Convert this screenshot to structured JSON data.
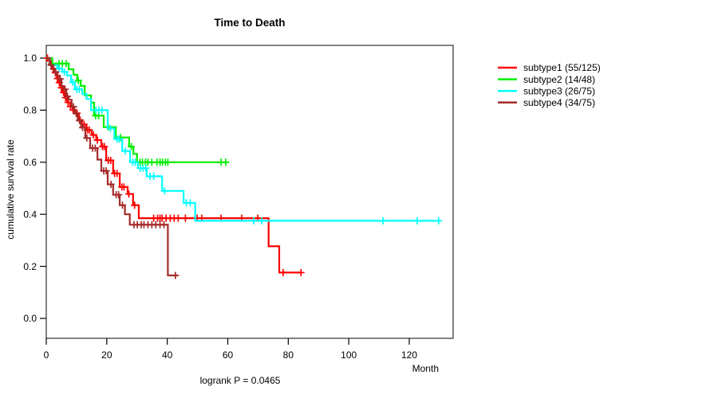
{
  "chart_data": {
    "type": "line",
    "variant": "kaplan_meier_step",
    "title": "Time to Death",
    "xlabel": "Month",
    "ylabel": "cumulative survival rate",
    "annotation": "logrank P = 0.0465",
    "xlim": [
      0,
      134.5
    ],
    "ylim": [
      0,
      1.0
    ],
    "grid": false,
    "legend_position": "right-outside",
    "censor_mark": "plus",
    "x_ticks": [
      0,
      20,
      40,
      60,
      80,
      100,
      120
    ],
    "x_tick_labels": [
      "0",
      "20",
      "40",
      "60",
      "80",
      "100",
      "120"
    ],
    "y_ticks": [
      1.0,
      0.8,
      0.6,
      0.4,
      0.2,
      0.0
    ],
    "y_tick_labels": [
      "1.0",
      "0.8",
      "0.6",
      "0.4",
      "0.2",
      "0.0"
    ],
    "series": [
      {
        "name": "subtype1 (55/125)",
        "color": "#ff0000",
        "end": 84.5,
        "steps": [
          [
            0,
            1.0
          ],
          [
            0.8,
            0.99
          ],
          [
            1.4,
            0.977
          ],
          [
            2.1,
            0.958
          ],
          [
            2.7,
            0.944
          ],
          [
            3.4,
            0.922
          ],
          [
            4.0,
            0.906
          ],
          [
            4.7,
            0.886
          ],
          [
            5.3,
            0.868
          ],
          [
            6.1,
            0.848
          ],
          [
            6.9,
            0.83
          ],
          [
            7.9,
            0.814
          ],
          [
            8.7,
            0.8
          ],
          [
            9.8,
            0.788
          ],
          [
            10.8,
            0.762
          ],
          [
            11.8,
            0.745
          ],
          [
            13.2,
            0.724
          ],
          [
            15.0,
            0.705
          ],
          [
            16.5,
            0.685
          ],
          [
            18.2,
            0.66
          ],
          [
            19.8,
            0.607
          ],
          [
            22.1,
            0.557
          ],
          [
            24.3,
            0.505
          ],
          [
            26.9,
            0.478
          ],
          [
            28.7,
            0.435
          ],
          [
            30.6,
            0.385
          ],
          [
            73.5,
            0.277
          ],
          [
            77.0,
            0.176
          ]
        ],
        "censors": [
          0.4,
          1.0,
          1.7,
          2.4,
          3.0,
          3.7,
          4.3,
          5.0,
          5.7,
          6.4,
          7.2,
          8.0,
          8.9,
          10.2,
          11.2,
          12.5,
          13.6,
          14.2,
          15.6,
          16.9,
          18.6,
          19.2,
          20.5,
          21.3,
          22.6,
          23.4,
          25.0,
          25.7,
          27.3,
          29.2,
          35.5,
          36.8,
          37.6,
          38.3,
          39.6,
          41.0,
          42.3,
          43.6,
          46.0,
          49.9,
          51.4,
          57.8,
          64.6,
          69.9,
          78.3,
          84.2
        ]
      },
      {
        "name": "subtype2 (14/48)",
        "color": "#00ee00",
        "end": 60.4,
        "steps": [
          [
            0,
            1.0
          ],
          [
            2.0,
            0.979
          ],
          [
            7.4,
            0.957
          ],
          [
            9.0,
            0.936
          ],
          [
            10.2,
            0.914
          ],
          [
            11.4,
            0.893
          ],
          [
            12.7,
            0.857
          ],
          [
            14.8,
            0.829
          ],
          [
            15.8,
            0.779
          ],
          [
            19.0,
            0.735
          ],
          [
            23.0,
            0.695
          ],
          [
            27.4,
            0.66
          ],
          [
            28.8,
            0.632
          ],
          [
            30.0,
            0.6
          ]
        ],
        "censors": [
          4.2,
          5.3,
          6.6,
          10.6,
          16.3,
          17.3,
          20.5,
          24.6,
          28.1,
          31.0,
          31.8,
          32.8,
          33.6,
          34.9,
          36.6,
          37.6,
          38.4,
          39.4,
          40.2,
          57.8,
          59.3
        ]
      },
      {
        "name": "subtype3 (26/75)",
        "color": "#00ffff",
        "end": 130.3,
        "steps": [
          [
            0,
            1.0
          ],
          [
            1.1,
            0.973
          ],
          [
            3.7,
            0.96
          ],
          [
            5.3,
            0.947
          ],
          [
            6.9,
            0.933
          ],
          [
            8.2,
            0.907
          ],
          [
            9.5,
            0.88
          ],
          [
            11.9,
            0.862
          ],
          [
            13.3,
            0.843
          ],
          [
            14.8,
            0.8
          ],
          [
            20.3,
            0.73
          ],
          [
            22.5,
            0.689
          ],
          [
            25.1,
            0.643
          ],
          [
            27.7,
            0.6
          ],
          [
            30.3,
            0.577
          ],
          [
            33.2,
            0.546
          ],
          [
            38.3,
            0.49
          ],
          [
            45.4,
            0.444
          ],
          [
            49.2,
            0.375
          ]
        ],
        "censors": [
          4.3,
          6.0,
          8.8,
          10.1,
          10.9,
          16.4,
          17.4,
          18.4,
          21.2,
          23.4,
          24.1,
          26.1,
          28.6,
          29.4,
          31.1,
          32.0,
          32.9,
          34.3,
          35.5,
          39.1,
          46.3,
          47.6,
          68.6,
          71.2,
          111.3,
          122.6,
          129.7
        ]
      },
      {
        "name": "subtype4 (34/75)",
        "color": "#a52a2a",
        "end": 43.4,
        "steps": [
          [
            0,
            1.0
          ],
          [
            1.2,
            0.973
          ],
          [
            2.0,
            0.96
          ],
          [
            2.8,
            0.947
          ],
          [
            3.6,
            0.933
          ],
          [
            4.3,
            0.92
          ],
          [
            5.0,
            0.893
          ],
          [
            5.8,
            0.88
          ],
          [
            6.6,
            0.853
          ],
          [
            7.4,
            0.84
          ],
          [
            8.4,
            0.813
          ],
          [
            9.3,
            0.787
          ],
          [
            10.4,
            0.76
          ],
          [
            11.5,
            0.733
          ],
          [
            12.9,
            0.693
          ],
          [
            14.5,
            0.654
          ],
          [
            16.9,
            0.61
          ],
          [
            18.2,
            0.567
          ],
          [
            20.3,
            0.515
          ],
          [
            22.1,
            0.475
          ],
          [
            24.3,
            0.435
          ],
          [
            26.0,
            0.4
          ],
          [
            27.6,
            0.36
          ],
          [
            40.2,
            0.165
          ]
        ],
        "censors": [
          1.6,
          3.0,
          4.6,
          6.2,
          7.0,
          9.0,
          9.9,
          11.0,
          12.0,
          13.4,
          15.3,
          16.2,
          19.0,
          19.8,
          21.4,
          23.1,
          23.9,
          25.2,
          29.0,
          30.1,
          31.4,
          32.3,
          33.6,
          34.9,
          36.2,
          37.6,
          38.9,
          42.7
        ]
      }
    ]
  }
}
